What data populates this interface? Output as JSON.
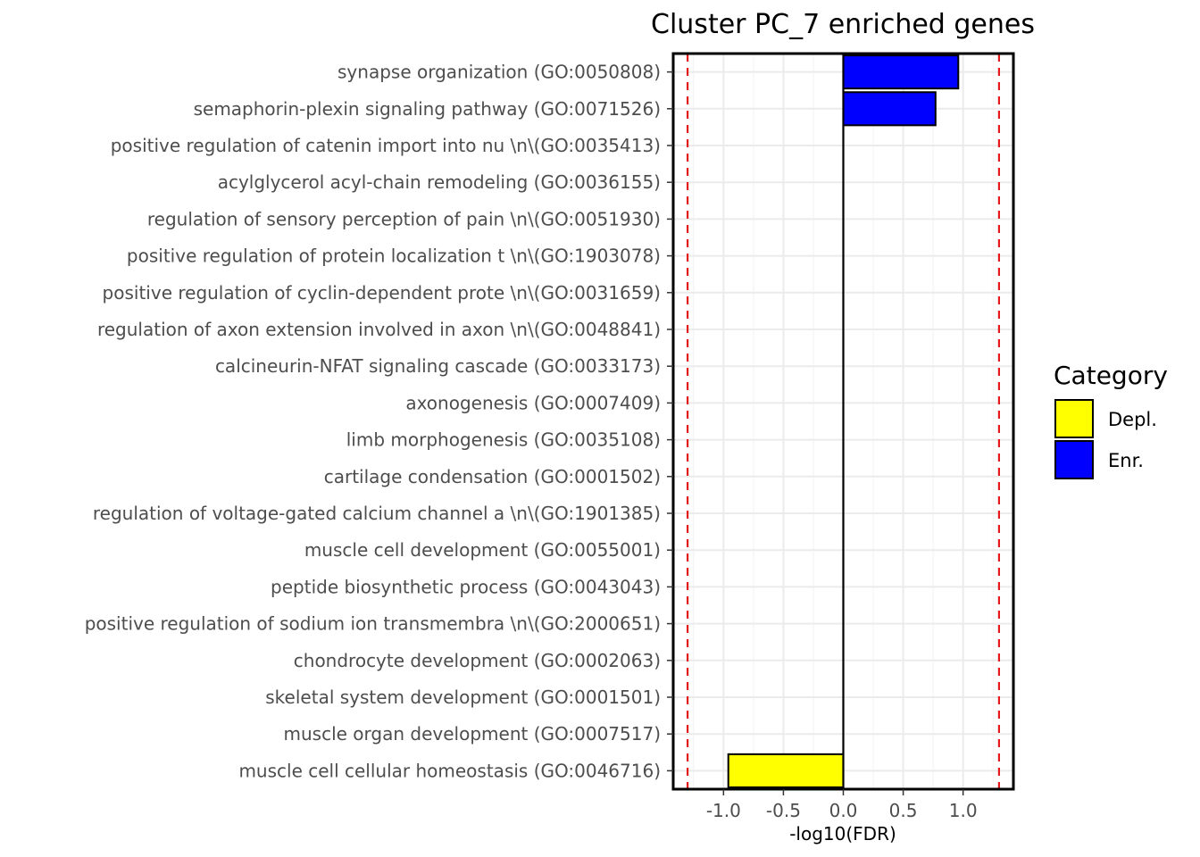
{
  "chart_data": {
    "type": "bar",
    "orientation": "horizontal",
    "title": "Cluster PC_7 enriched genes",
    "xlabel": "-log10(FDR)",
    "ylabel": "",
    "xlim": [
      -1.42,
      1.42
    ],
    "xticks": [
      -1.0,
      -0.5,
      0.0,
      0.5,
      1.0
    ],
    "xtick_labels": [
      "-1.0",
      "-0.5",
      "0.0",
      "0.5",
      "1.0"
    ],
    "grid": true,
    "threshold_lines": [
      -1.3,
      1.3
    ],
    "threshold_color": "#e41a1c",
    "categories": [
      "synapse organization (GO:0050808)",
      "semaphorin-plexin signaling pathway (GO:0071526)",
      "positive regulation of catenin import into nu \\n\\(GO:0035413)",
      "acylglycerol acyl-chain remodeling (GO:0036155)",
      "regulation of sensory perception of pain  \\n\\(GO:0051930)",
      "positive regulation of protein localization t \\n\\(GO:1903078)",
      "positive regulation of cyclin-dependent prote \\n\\(GO:0031659)",
      "regulation of axon extension involved in axon \\n\\(GO:0048841)",
      "calcineurin-NFAT signaling cascade (GO:0033173)",
      "axonogenesis (GO:0007409)",
      "limb morphogenesis (GO:0035108)",
      "cartilage condensation (GO:0001502)",
      "regulation of voltage-gated calcium channel a \\n\\(GO:1901385)",
      "muscle cell development (GO:0055001)",
      "peptide biosynthetic process (GO:0043043)",
      "positive regulation of sodium ion transmembra \\n\\(GO:2000651)",
      "chondrocyte development (GO:0002063)",
      "skeletal system development (GO:0001501)",
      "muscle organ development (GO:0007517)",
      "muscle cell cellular homeostasis (GO:0046716)"
    ],
    "values": [
      0.96,
      0.77,
      0,
      0,
      0,
      0,
      0,
      0,
      0,
      0,
      0,
      0,
      0,
      0,
      0,
      0,
      0,
      0,
      0,
      -0.96
    ],
    "bar_category": [
      "Enr.",
      "Enr.",
      "Enr.",
      "Enr.",
      "Enr.",
      "Enr.",
      "Enr.",
      "Enr.",
      "Enr.",
      "Enr.",
      "Enr.",
      "Enr.",
      "Enr.",
      "Enr.",
      "Enr.",
      "Enr.",
      "Enr.",
      "Enr.",
      "Enr.",
      "Depl."
    ],
    "legend": {
      "title": "Category",
      "position": "right",
      "entries": [
        {
          "label": "Depl.",
          "color": "#ffff00"
        },
        {
          "label": "Enr.",
          "color": "#0000ff"
        }
      ]
    }
  }
}
